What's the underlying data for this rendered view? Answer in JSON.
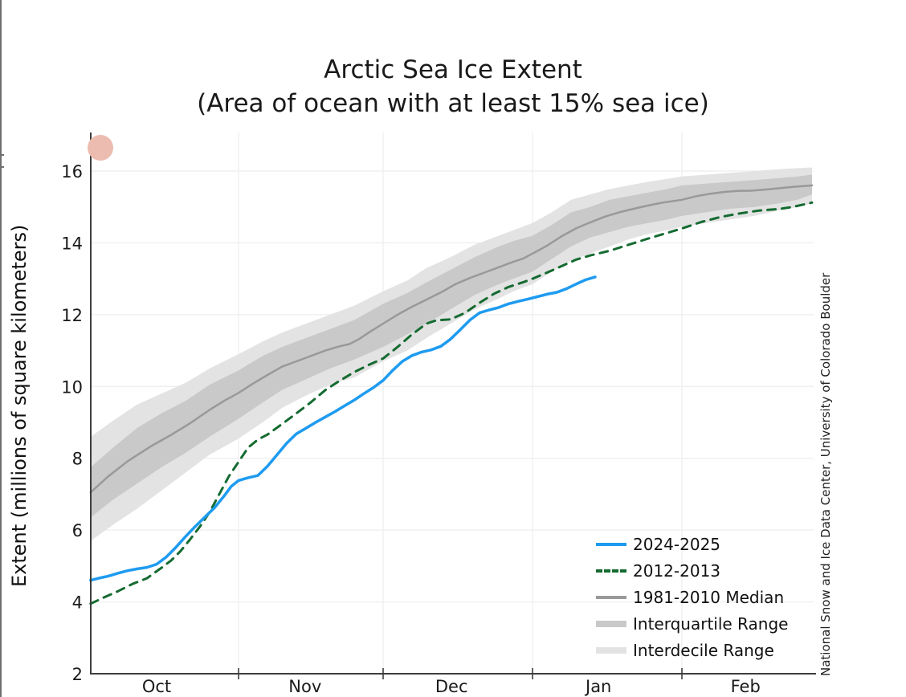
{
  "chart_data": {
    "type": "line",
    "title": "Arctic Sea Ice Extent",
    "subtitle": "(Area of ocean with at least 15% sea ice)",
    "ylabel": "Extent (millions of square kilometers)",
    "attribution": "National Snow and Ice Data Center, University of Colorado Boulder",
    "x_unit": "days since Oct 1",
    "x_range": [
      0,
      150
    ],
    "y_range": [
      2,
      16
    ],
    "y_ticks": [
      2,
      4,
      6,
      8,
      10,
      12,
      14,
      16
    ],
    "y_gridline_values": [
      4,
      6,
      8,
      10,
      12,
      14,
      16
    ],
    "x_gridline_days": [
      31,
      61,
      92,
      123
    ],
    "x_labels": [
      {
        "label": "Oct",
        "day": 14
      },
      {
        "label": "Nov",
        "day": 44.8
      },
      {
        "label": "Dec",
        "day": 75.2
      },
      {
        "label": "Jan",
        "day": 105.7
      },
      {
        "label": "Feb",
        "day": 136.2
      }
    ],
    "legend_position": "lower-right",
    "colors": {
      "current_season": "#1e9bf0",
      "season_2012": "#156b31",
      "median": "#999999",
      "interquartile": "#c9c9c9",
      "interdecile": "#e3e3e3",
      "axis": "#3d3d3d",
      "grid": "#f0f0f0",
      "marker_circle": "#edbcb1"
    },
    "bands": [
      {
        "name": "Interdecile Range",
        "color": "#e3e3e3",
        "upper": [
          [
            0.3,
            8.6
          ],
          [
            5,
            9.05
          ],
          [
            10,
            9.5
          ],
          [
            15,
            9.8
          ],
          [
            20,
            10.1
          ],
          [
            25,
            10.5
          ],
          [
            31,
            10.9
          ],
          [
            36,
            11.25
          ],
          [
            40,
            11.5
          ],
          [
            45,
            11.75
          ],
          [
            50,
            12.0
          ],
          [
            55,
            12.25
          ],
          [
            61,
            12.65
          ],
          [
            66,
            12.95
          ],
          [
            70,
            13.3
          ],
          [
            75,
            13.6
          ],
          [
            80,
            13.95
          ],
          [
            85,
            14.2
          ],
          [
            88,
            14.35
          ],
          [
            92,
            14.55
          ],
          [
            96,
            14.85
          ],
          [
            100,
            15.2
          ],
          [
            104,
            15.35
          ],
          [
            108,
            15.5
          ],
          [
            112,
            15.6
          ],
          [
            116,
            15.7
          ],
          [
            120,
            15.78
          ],
          [
            123,
            15.85
          ],
          [
            128,
            15.9
          ],
          [
            133,
            15.95
          ],
          [
            138,
            16.0
          ],
          [
            143,
            16.05
          ],
          [
            147,
            16.08
          ],
          [
            150,
            16.1
          ]
        ],
        "lower": [
          [
            0.3,
            5.7
          ],
          [
            5,
            6.15
          ],
          [
            10,
            6.6
          ],
          [
            15,
            7.1
          ],
          [
            20,
            7.6
          ],
          [
            25,
            8.1
          ],
          [
            31,
            8.55
          ],
          [
            36,
            9.0
          ],
          [
            40,
            9.4
          ],
          [
            45,
            9.75
          ],
          [
            50,
            10.05
          ],
          [
            55,
            10.25
          ],
          [
            61,
            10.7
          ],
          [
            66,
            11.0
          ],
          [
            70,
            11.35
          ],
          [
            75,
            11.75
          ],
          [
            80,
            12.15
          ],
          [
            85,
            12.45
          ],
          [
            88,
            12.65
          ],
          [
            92,
            12.85
          ],
          [
            96,
            13.2
          ],
          [
            100,
            13.5
          ],
          [
            104,
            13.7
          ],
          [
            108,
            13.9
          ],
          [
            112,
            14.1
          ],
          [
            116,
            14.25
          ],
          [
            120,
            14.35
          ],
          [
            123,
            14.45
          ],
          [
            128,
            14.55
          ],
          [
            133,
            14.65
          ],
          [
            138,
            14.75
          ],
          [
            143,
            14.9
          ],
          [
            147,
            15.0
          ],
          [
            150,
            15.1
          ]
        ]
      },
      {
        "name": "Interquartile Range",
        "color": "#c9c9c9",
        "upper": [
          [
            0.3,
            7.75
          ],
          [
            5,
            8.3
          ],
          [
            10,
            8.85
          ],
          [
            15,
            9.25
          ],
          [
            20,
            9.6
          ],
          [
            25,
            10.05
          ],
          [
            31,
            10.45
          ],
          [
            36,
            10.85
          ],
          [
            40,
            11.1
          ],
          [
            45,
            11.35
          ],
          [
            50,
            11.6
          ],
          [
            55,
            11.85
          ],
          [
            61,
            12.3
          ],
          [
            66,
            12.6
          ],
          [
            70,
            12.9
          ],
          [
            75,
            13.25
          ],
          [
            80,
            13.6
          ],
          [
            85,
            13.9
          ],
          [
            88,
            14.05
          ],
          [
            92,
            14.2
          ],
          [
            96,
            14.5
          ],
          [
            100,
            14.85
          ],
          [
            104,
            15.0
          ],
          [
            108,
            15.2
          ],
          [
            112,
            15.3
          ],
          [
            116,
            15.4
          ],
          [
            120,
            15.5
          ],
          [
            123,
            15.6
          ],
          [
            128,
            15.65
          ],
          [
            133,
            15.7
          ],
          [
            138,
            15.75
          ],
          [
            143,
            15.8
          ],
          [
            147,
            15.85
          ],
          [
            150,
            15.9
          ]
        ],
        "lower": [
          [
            0.3,
            6.35
          ],
          [
            5,
            6.85
          ],
          [
            10,
            7.3
          ],
          [
            15,
            7.75
          ],
          [
            20,
            8.15
          ],
          [
            25,
            8.6
          ],
          [
            31,
            9.1
          ],
          [
            36,
            9.55
          ],
          [
            40,
            9.9
          ],
          [
            45,
            10.2
          ],
          [
            50,
            10.5
          ],
          [
            55,
            10.75
          ],
          [
            61,
            11.1
          ],
          [
            66,
            11.45
          ],
          [
            70,
            11.75
          ],
          [
            75,
            12.15
          ],
          [
            80,
            12.55
          ],
          [
            85,
            12.85
          ],
          [
            88,
            13.0
          ],
          [
            92,
            13.2
          ],
          [
            96,
            13.55
          ],
          [
            100,
            13.9
          ],
          [
            104,
            14.15
          ],
          [
            108,
            14.3
          ],
          [
            112,
            14.45
          ],
          [
            116,
            14.55
          ],
          [
            120,
            14.65
          ],
          [
            123,
            14.75
          ],
          [
            128,
            14.85
          ],
          [
            133,
            14.95
          ],
          [
            138,
            15.0
          ],
          [
            143,
            15.1
          ],
          [
            147,
            15.2
          ],
          [
            150,
            15.35
          ]
        ]
      }
    ],
    "series": [
      {
        "name": "2024-2025",
        "color": "#1e9bf0",
        "style": "solid",
        "width": 3.5,
        "points": [
          [
            0.3,
            4.6
          ],
          [
            2,
            4.66
          ],
          [
            4,
            4.72
          ],
          [
            6,
            4.8
          ],
          [
            8,
            4.87
          ],
          [
            10,
            4.92
          ],
          [
            12,
            4.96
          ],
          [
            14,
            5.05
          ],
          [
            16,
            5.25
          ],
          [
            18,
            5.52
          ],
          [
            20,
            5.82
          ],
          [
            22,
            6.1
          ],
          [
            24,
            6.36
          ],
          [
            26,
            6.62
          ],
          [
            28,
            6.95
          ],
          [
            29.5,
            7.22
          ],
          [
            31,
            7.38
          ],
          [
            33,
            7.46
          ],
          [
            35,
            7.52
          ],
          [
            37,
            7.78
          ],
          [
            39,
            8.1
          ],
          [
            41,
            8.42
          ],
          [
            43,
            8.68
          ],
          [
            45,
            8.84
          ],
          [
            47,
            9.0
          ],
          [
            49,
            9.15
          ],
          [
            51,
            9.3
          ],
          [
            53,
            9.46
          ],
          [
            55,
            9.62
          ],
          [
            57,
            9.8
          ],
          [
            59,
            9.97
          ],
          [
            61,
            10.17
          ],
          [
            63,
            10.45
          ],
          [
            65,
            10.7
          ],
          [
            67,
            10.86
          ],
          [
            69,
            10.96
          ],
          [
            71,
            11.02
          ],
          [
            73,
            11.12
          ],
          [
            75,
            11.32
          ],
          [
            77,
            11.58
          ],
          [
            79,
            11.85
          ],
          [
            81,
            12.05
          ],
          [
            83,
            12.13
          ],
          [
            85,
            12.2
          ],
          [
            87,
            12.3
          ],
          [
            89,
            12.37
          ],
          [
            91,
            12.43
          ],
          [
            93,
            12.5
          ],
          [
            95,
            12.57
          ],
          [
            97,
            12.62
          ],
          [
            99,
            12.72
          ],
          [
            101,
            12.85
          ],
          [
            103,
            12.97
          ],
          [
            105,
            13.05
          ]
        ]
      },
      {
        "name": "2012-2013",
        "color": "#156b31",
        "style": "dashed",
        "width": 3,
        "points": [
          [
            0.3,
            3.95
          ],
          [
            3,
            4.12
          ],
          [
            6,
            4.3
          ],
          [
            9,
            4.5
          ],
          [
            12,
            4.66
          ],
          [
            15,
            4.95
          ],
          [
            17,
            5.15
          ],
          [
            19,
            5.42
          ],
          [
            21,
            5.75
          ],
          [
            23,
            6.1
          ],
          [
            25,
            6.5
          ],
          [
            27,
            7.0
          ],
          [
            29,
            7.5
          ],
          [
            31,
            7.9
          ],
          [
            33,
            8.3
          ],
          [
            35,
            8.52
          ],
          [
            37,
            8.66
          ],
          [
            40,
            8.95
          ],
          [
            43,
            9.25
          ],
          [
            46,
            9.56
          ],
          [
            49,
            9.9
          ],
          [
            52,
            10.16
          ],
          [
            55,
            10.4
          ],
          [
            58,
            10.6
          ],
          [
            61,
            10.78
          ],
          [
            64,
            11.1
          ],
          [
            67,
            11.45
          ],
          [
            70,
            11.75
          ],
          [
            72,
            11.84
          ],
          [
            75,
            11.87
          ],
          [
            78,
            12.05
          ],
          [
            81,
            12.33
          ],
          [
            84,
            12.58
          ],
          [
            87,
            12.77
          ],
          [
            90,
            12.9
          ],
          [
            92,
            13.0
          ],
          [
            95,
            13.17
          ],
          [
            98,
            13.35
          ],
          [
            101,
            13.53
          ],
          [
            104,
            13.65
          ],
          [
            108,
            13.78
          ],
          [
            112,
            13.95
          ],
          [
            116,
            14.12
          ],
          [
            120,
            14.28
          ],
          [
            123,
            14.4
          ],
          [
            127,
            14.58
          ],
          [
            131,
            14.72
          ],
          [
            135,
            14.82
          ],
          [
            139,
            14.9
          ],
          [
            143,
            14.94
          ],
          [
            146,
            15.0
          ],
          [
            150,
            15.12
          ]
        ]
      },
      {
        "name": "1981-2010 Median",
        "color": "#999999",
        "style": "solid",
        "width": 2.5,
        "points": [
          [
            0.3,
            7.05
          ],
          [
            4,
            7.5
          ],
          [
            8,
            7.92
          ],
          [
            13,
            8.35
          ],
          [
            17,
            8.65
          ],
          [
            21,
            8.98
          ],
          [
            25,
            9.35
          ],
          [
            28,
            9.6
          ],
          [
            31,
            9.82
          ],
          [
            34,
            10.08
          ],
          [
            37,
            10.32
          ],
          [
            40,
            10.55
          ],
          [
            43,
            10.7
          ],
          [
            46,
            10.85
          ],
          [
            49,
            11.0
          ],
          [
            52,
            11.12
          ],
          [
            54,
            11.18
          ],
          [
            56,
            11.32
          ],
          [
            58,
            11.5
          ],
          [
            61,
            11.75
          ],
          [
            64,
            12.0
          ],
          [
            67,
            12.22
          ],
          [
            70,
            12.42
          ],
          [
            73,
            12.62
          ],
          [
            76,
            12.85
          ],
          [
            79,
            13.02
          ],
          [
            82,
            13.17
          ],
          [
            85,
            13.32
          ],
          [
            88,
            13.47
          ],
          [
            90,
            13.56
          ],
          [
            92,
            13.7
          ],
          [
            95,
            13.92
          ],
          [
            98,
            14.18
          ],
          [
            101,
            14.4
          ],
          [
            104,
            14.57
          ],
          [
            107,
            14.73
          ],
          [
            110,
            14.85
          ],
          [
            113,
            14.95
          ],
          [
            116,
            15.04
          ],
          [
            119,
            15.12
          ],
          [
            123,
            15.2
          ],
          [
            126,
            15.3
          ],
          [
            129,
            15.37
          ],
          [
            132,
            15.42
          ],
          [
            135,
            15.45
          ],
          [
            137,
            15.45
          ],
          [
            140,
            15.48
          ],
          [
            143,
            15.52
          ],
          [
            146,
            15.56
          ],
          [
            150,
            15.6
          ]
        ]
      }
    ]
  },
  "legend": {
    "items": [
      {
        "label": "2024-2025",
        "swatch": "line",
        "color": "#1e9bf0"
      },
      {
        "label": "2012-2013",
        "swatch": "dashed",
        "color": "#156b31"
      },
      {
        "label": "1981-2010 Median",
        "swatch": "line",
        "color": "#999999"
      },
      {
        "label": "Interquartile Range",
        "swatch": "band",
        "color": "#c9c9c9"
      },
      {
        "label": "Interdecile Range",
        "swatch": "band",
        "color": "#e3e3e3"
      }
    ]
  }
}
